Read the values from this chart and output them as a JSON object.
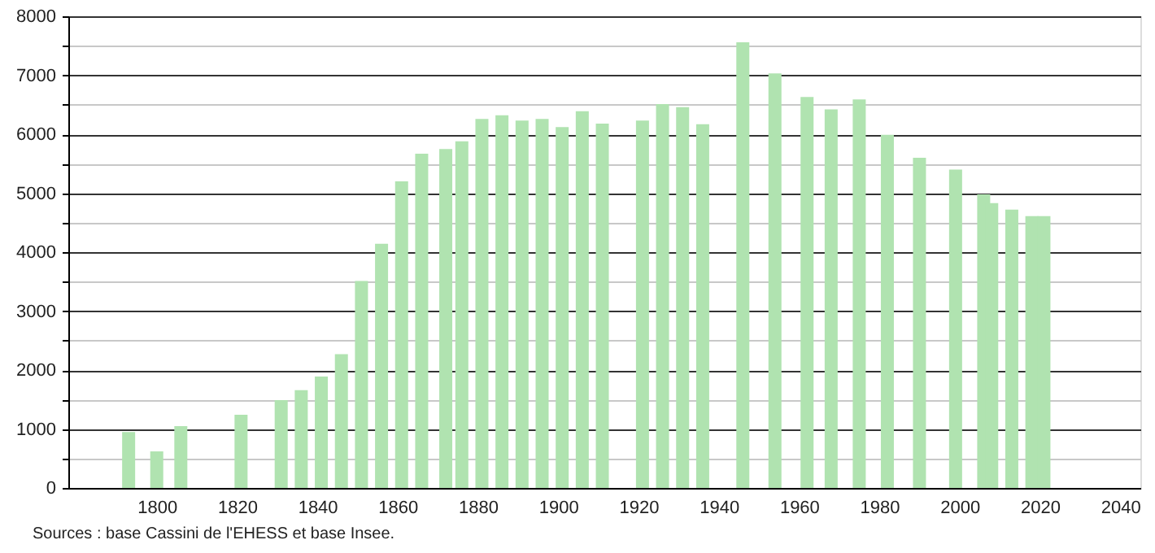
{
  "chart_data": {
    "type": "bar",
    "x": [
      1793,
      1800,
      1806,
      1821,
      1831,
      1836,
      1841,
      1846,
      1851,
      1856,
      1861,
      1866,
      1872,
      1876,
      1881,
      1886,
      1891,
      1896,
      1901,
      1906,
      1911,
      1921,
      1926,
      1931,
      1936,
      1946,
      1954,
      1962,
      1968,
      1975,
      1982,
      1990,
      1999,
      2006,
      2008,
      2013,
      2018,
      2021
    ],
    "values": [
      950,
      620,
      1050,
      1240,
      1490,
      1660,
      1890,
      2270,
      3510,
      4140,
      5200,
      5670,
      5750,
      5880,
      6260,
      6320,
      6230,
      6260,
      6120,
      6390,
      6180,
      6230,
      6510,
      6460,
      6170,
      7560,
      7030,
      6630,
      6420,
      6590,
      5990,
      5600,
      5400,
      4980,
      4830,
      4720,
      4610,
      4610
    ],
    "color": "#b0e3b0",
    "xlim": [
      1780,
      2043
    ],
    "xticks": [
      1800,
      1820,
      1840,
      1860,
      1880,
      1900,
      1920,
      1940,
      1960,
      1980,
      2000,
      2020,
      2040
    ],
    "ylim": [
      0,
      8000
    ],
    "yticks": [
      0,
      {
        "value": 500,
        "label": null
      },
      1000,
      {
        "value": 1500,
        "label": null
      },
      2000,
      {
        "value": 2500,
        "label": null
      },
      3000,
      {
        "value": 3500,
        "label": null
      },
      4000,
      {
        "value": 4500,
        "label": null
      },
      5000,
      {
        "value": 5500,
        "label": null
      },
      6000,
      {
        "value": 6500,
        "label": null
      },
      7000,
      {
        "value": 7500,
        "label": null
      },
      8000
    ],
    "grid": "y",
    "annotations": [
      "Sources : base Cassini de l'EHESS et base Insee."
    ]
  }
}
